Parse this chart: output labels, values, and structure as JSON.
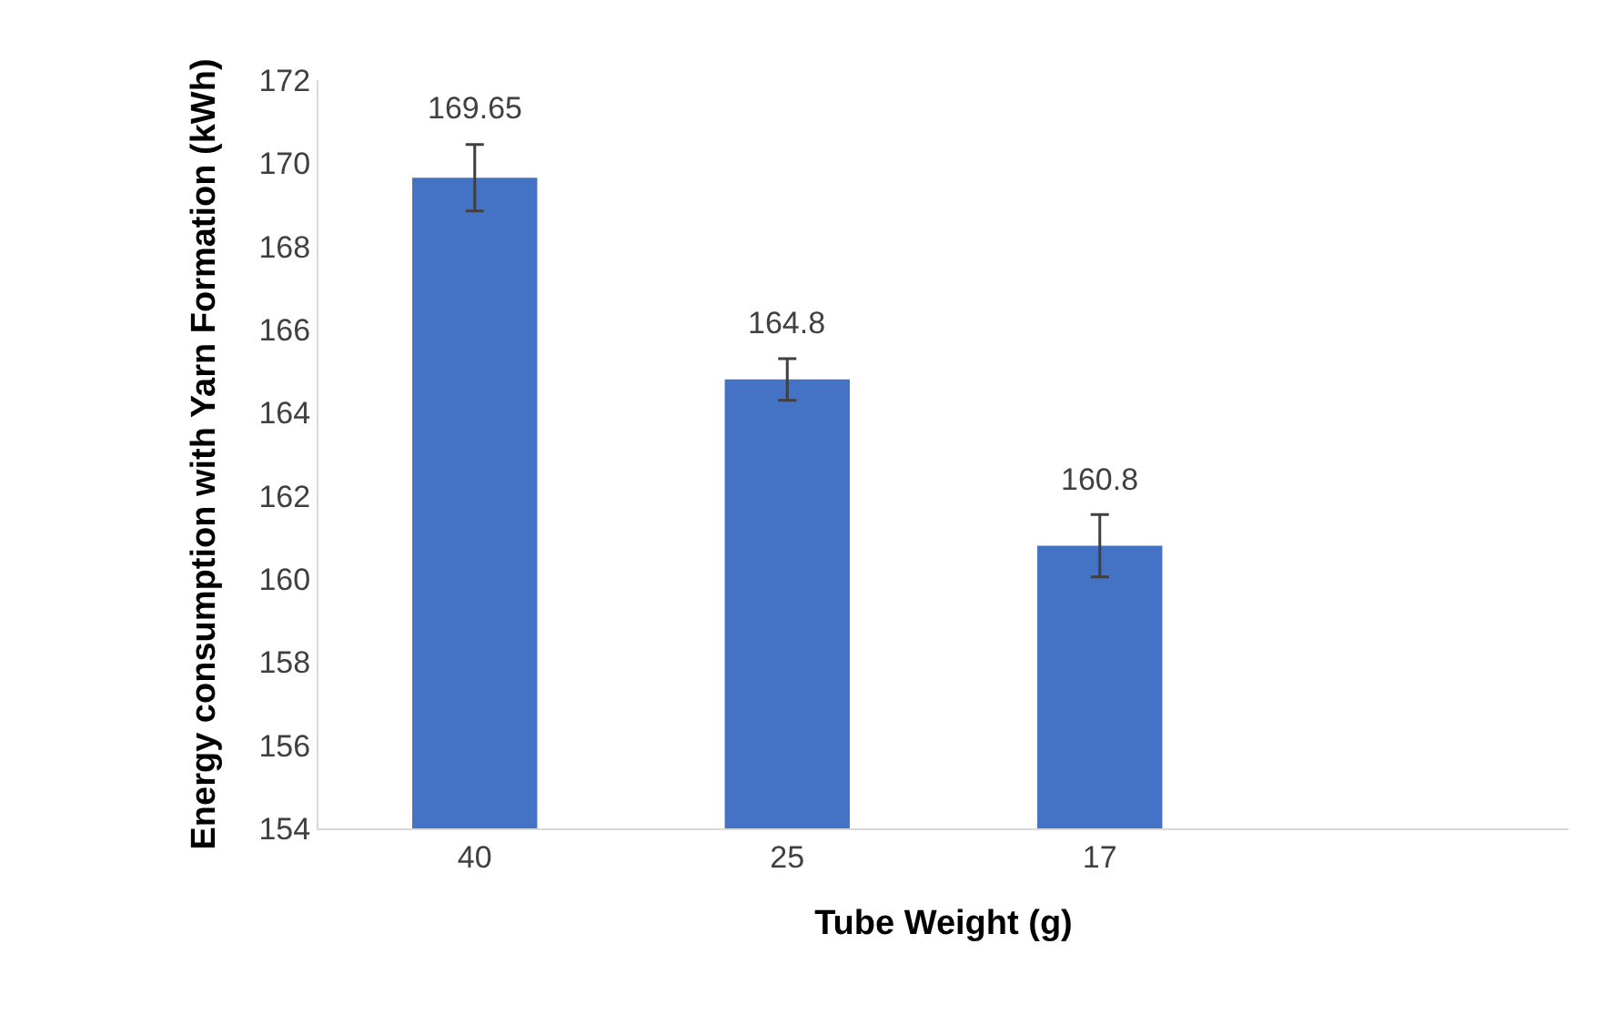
{
  "chart_data": {
    "type": "bar",
    "xlabel": "Tube Weight (g)",
    "ylabel": "Energy consumption with Yarn Formation (kWh)",
    "categories": [
      "40",
      "25",
      "17",
      null
    ],
    "values": [
      169.65,
      164.8,
      160.8,
      null
    ],
    "errors": [
      0.8,
      0.5,
      0.75,
      null
    ],
    "color": "#4472c4",
    "ylim": [
      154,
      172
    ],
    "yticks": [
      154,
      156,
      158,
      160,
      162,
      164,
      166,
      168,
      170,
      172
    ],
    "grid": false,
    "legend": false,
    "data_labels": true
  }
}
